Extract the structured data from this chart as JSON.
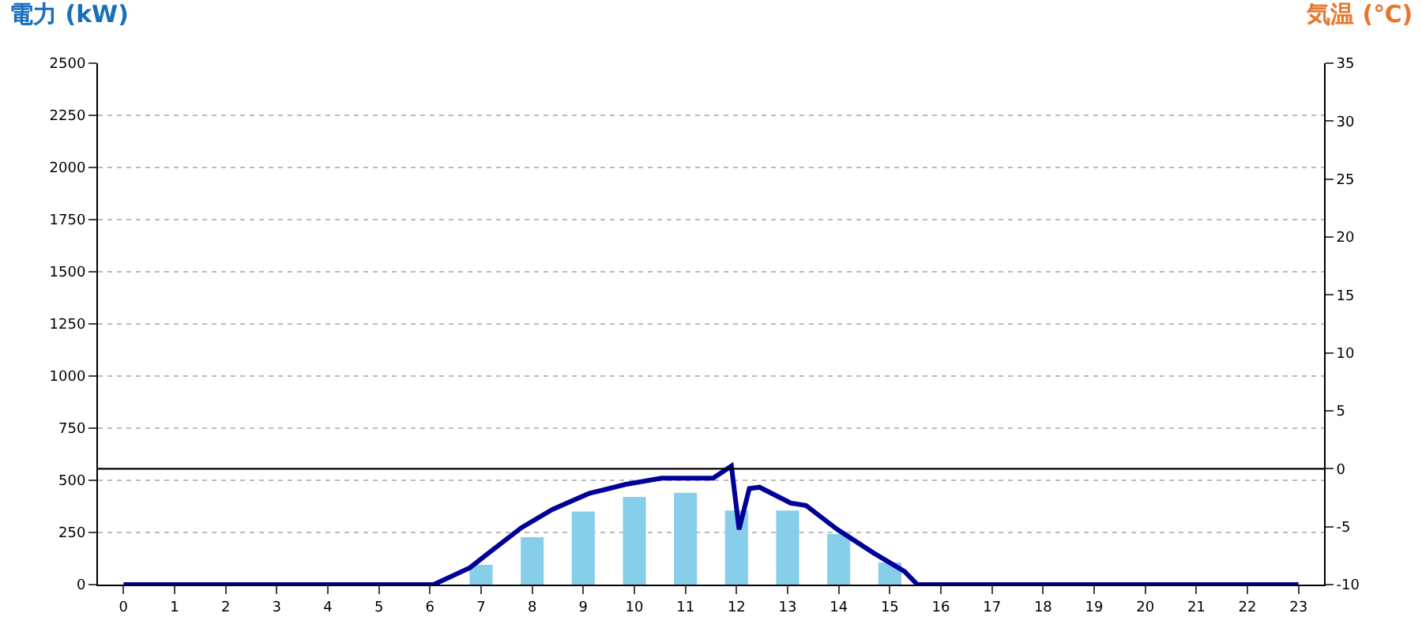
{
  "chart_data": {
    "type": "bar",
    "ylabel": "電力 (kW)",
    "y2label": "気温 (℃)",
    "x": [
      0,
      1,
      2,
      3,
      4,
      5,
      6,
      7,
      8,
      9,
      10,
      11,
      12,
      13,
      14,
      15,
      16,
      17,
      18,
      19,
      20,
      21,
      22,
      23
    ],
    "xlim": [
      -0.5,
      23.5
    ],
    "xticks": [
      0,
      1,
      2,
      3,
      4,
      5,
      6,
      7,
      8,
      9,
      10,
      11,
      12,
      13,
      14,
      15,
      16,
      17,
      18,
      19,
      20,
      21,
      22,
      23
    ],
    "series": [
      {
        "color": "#87ceeb",
        "values": [
          0,
          0,
          0,
          0,
          0,
          0,
          0,
          95,
          227,
          350,
          420,
          440,
          355,
          355,
          242,
          106,
          0,
          0,
          0,
          0,
          0,
          0,
          0,
          0
        ]
      },
      {
        "type": "line",
        "color": "#000099",
        "x": [
          0,
          6.07,
          6.78,
          7.08,
          7.79,
          8.4,
          9.11,
          9.82,
          10.53,
          11.54,
          11.9,
          12.05,
          12.25,
          12.45,
          13.06,
          13.36,
          13.97,
          14.68,
          15.29,
          15.54,
          23
        ],
        "values": [
          0,
          0,
          81,
          139,
          273,
          361,
          437,
          480,
          510,
          510,
          568,
          265,
          460,
          467,
          391,
          379,
          265,
          152,
          63,
          0,
          0
        ]
      }
    ],
    "ylim": [
      0,
      2500
    ],
    "yticks": [
      0,
      250,
      500,
      750,
      1000,
      1250,
      1500,
      1750,
      2000,
      2250,
      2500
    ],
    "y2lim": [
      -10,
      35
    ],
    "y2ticks": [
      -10,
      -5,
      0,
      5,
      10,
      15,
      20,
      25,
      30,
      35
    ],
    "ref_lines": [
      {
        "axis": "y2",
        "value": 0,
        "color": "#000000"
      }
    ],
    "grid": "y"
  }
}
